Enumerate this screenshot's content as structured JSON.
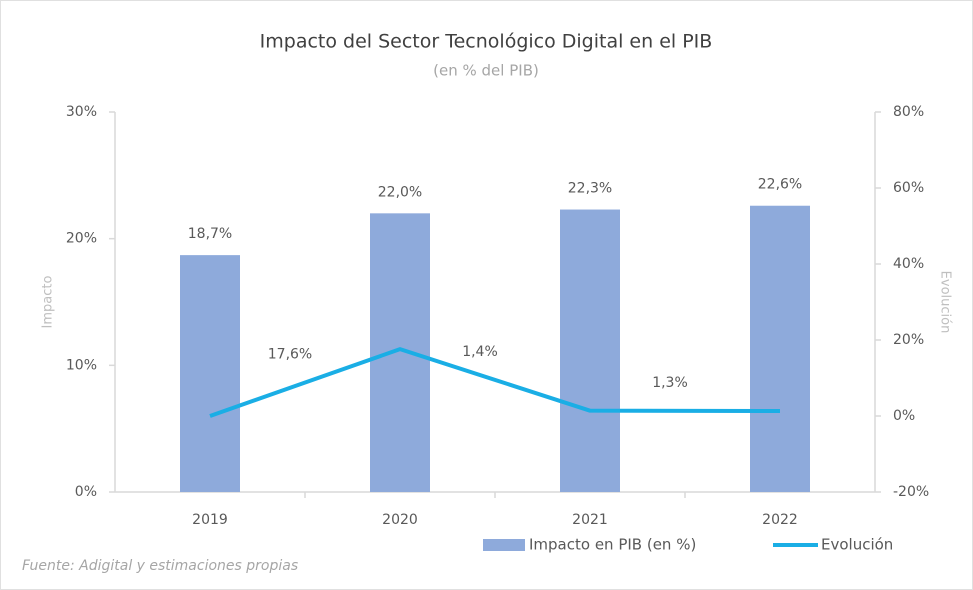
{
  "chart_data": {
    "type": "bar",
    "title": "Impacto del Sector Tecnológico Digital en el PIB",
    "subtitle": "(en % del PIB)",
    "y_label": "Impacto",
    "y2_label": "Evolución",
    "source": "Fuente: Adigital y estimaciones propias",
    "categories": [
      "2019",
      "2020",
      "2021",
      "2022"
    ],
    "series": [
      {
        "name": "Impacto en PIB (en %)",
        "type": "bar",
        "color": "#8eaadb",
        "values": [
          18.7,
          22.0,
          22.3,
          22.6
        ],
        "value_labels": [
          "18,7%",
          "22,0%",
          "22,3%",
          "22,6%"
        ]
      },
      {
        "name": "Evolución",
        "type": "line",
        "axis": "y2",
        "color": "#1aaee5",
        "values": [
          0,
          17.6,
          1.4,
          1.3
        ],
        "value_labels": [
          null,
          "17,6%",
          "1,4%",
          "1,3%"
        ]
      }
    ],
    "ylim": [
      0,
      30
    ],
    "yticks": [
      {
        "value": 0,
        "label": "0%"
      },
      {
        "value": 10,
        "label": "10%"
      },
      {
        "value": 20,
        "label": "20%"
      },
      {
        "value": 30,
        "label": "30%"
      }
    ],
    "y2lim": [
      -20,
      80
    ],
    "y2ticks": [
      {
        "value": -20,
        "label": "-20%"
      },
      {
        "value": 0,
        "label": "0%"
      },
      {
        "value": 20,
        "label": "20%"
      },
      {
        "value": 40,
        "label": "40%"
      },
      {
        "value": 60,
        "label": "60%"
      },
      {
        "value": 80,
        "label": "80%"
      }
    ],
    "legend": "bottom",
    "grid": false
  }
}
